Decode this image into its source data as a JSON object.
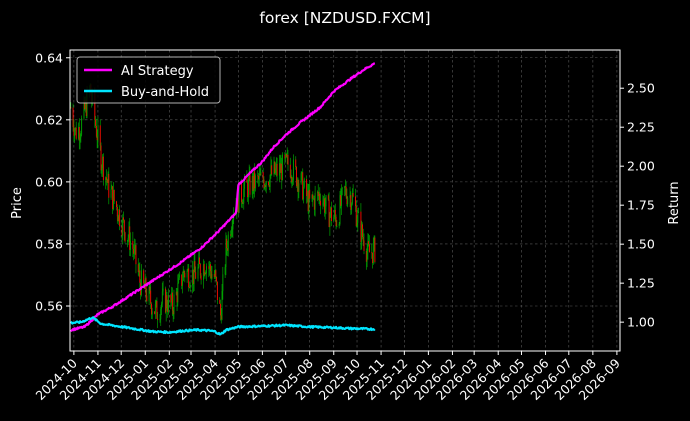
{
  "chart_data": {
    "type": "line",
    "title": "forex [NZDUSD.FXCM]",
    "ylabel_left": "Price",
    "ylabel_right": "Return",
    "grid": true,
    "legend_placement": "top-left",
    "x_ticks": [
      "2024-10",
      "2024-11",
      "2024-12",
      "2025-01",
      "2025-02",
      "2025-03",
      "2025-04",
      "2025-05",
      "2025-06",
      "2025-07",
      "2025-08",
      "2025-09",
      "2025-10",
      "2025-11",
      "2025-12",
      "2026-01",
      "2026-02",
      "2026-03",
      "2026-04",
      "2026-05",
      "2026-06",
      "2026-07",
      "2026-08",
      "2026-09"
    ],
    "x_range": [
      "2024-09-26",
      "2026-09-05"
    ],
    "y_left_ticks": [
      "0.56",
      "0.58",
      "0.60",
      "0.62",
      "0.64"
    ],
    "y_left_range": [
      0.5455,
      0.6425
    ],
    "y_right_ticks": [
      "1.00",
      "1.25",
      "1.50",
      "1.75",
      "2.00",
      "2.25",
      "2.50"
    ],
    "y_right_range": [
      0.815,
      2.745
    ],
    "candles": {
      "up_color": "#00a000",
      "down_color": "#ff0000",
      "wick_color": "#00a000",
      "date_range": [
        "2024-09-27",
        "2025-10-24"
      ],
      "close_anchors": [
        [
          "2024-09-27",
          0.624
        ],
        [
          "2024-10-03",
          0.616
        ],
        [
          "2024-10-10",
          0.618
        ],
        [
          "2024-10-16",
          0.624
        ],
        [
          "2024-10-22",
          0.63
        ],
        [
          "2024-10-28",
          0.62
        ],
        [
          "2024-11-05",
          0.608
        ],
        [
          "2024-11-15",
          0.598
        ],
        [
          "2024-11-25",
          0.592
        ],
        [
          "2024-12-05",
          0.585
        ],
        [
          "2024-12-15",
          0.58
        ],
        [
          "2024-12-25",
          0.568
        ],
        [
          "2025-01-05",
          0.563
        ],
        [
          "2025-01-15",
          0.558
        ],
        [
          "2025-01-25",
          0.562
        ],
        [
          "2025-02-05",
          0.56
        ],
        [
          "2025-02-20",
          0.571
        ],
        [
          "2025-03-05",
          0.57
        ],
        [
          "2025-03-20",
          0.574
        ],
        [
          "2025-04-01",
          0.569
        ],
        [
          "2025-04-08",
          0.557
        ],
        [
          "2025-04-15",
          0.578
        ],
        [
          "2025-04-25",
          0.592
        ],
        [
          "2025-05-10",
          0.598
        ],
        [
          "2025-05-25",
          0.6
        ],
        [
          "2025-06-10",
          0.602
        ],
        [
          "2025-06-25",
          0.604
        ],
        [
          "2025-07-05",
          0.606
        ],
        [
          "2025-07-20",
          0.6
        ],
        [
          "2025-08-01",
          0.593
        ],
        [
          "2025-08-15",
          0.596
        ],
        [
          "2025-08-25",
          0.59
        ],
        [
          "2025-09-05",
          0.588
        ],
        [
          "2025-09-15",
          0.597
        ],
        [
          "2025-09-25",
          0.595
        ],
        [
          "2025-10-05",
          0.585
        ],
        [
          "2025-10-15",
          0.577
        ],
        [
          "2025-10-24",
          0.578
        ]
      ]
    },
    "series": [
      {
        "name": "AI Strategy",
        "color": "#ff00ff",
        "axis": "right",
        "points": [
          [
            "2024-09-27",
            0.95
          ],
          [
            "2024-10-15",
            0.97
          ],
          [
            "2024-11-01",
            1.05
          ],
          [
            "2024-11-20",
            1.1
          ],
          [
            "2024-12-15",
            1.18
          ],
          [
            "2025-01-15",
            1.28
          ],
          [
            "2025-02-15",
            1.38
          ],
          [
            "2025-03-15",
            1.48
          ],
          [
            "2025-04-05",
            1.58
          ],
          [
            "2025-04-28",
            1.7
          ],
          [
            "2025-05-01",
            1.88
          ],
          [
            "2025-05-15",
            1.95
          ],
          [
            "2025-06-01",
            2.03
          ],
          [
            "2025-06-15",
            2.12
          ],
          [
            "2025-07-01",
            2.2
          ],
          [
            "2025-07-20",
            2.28
          ],
          [
            "2025-08-15",
            2.38
          ],
          [
            "2025-09-01",
            2.48
          ],
          [
            "2025-09-20",
            2.55
          ],
          [
            "2025-10-10",
            2.62
          ],
          [
            "2025-10-24",
            2.66
          ]
        ]
      },
      {
        "name": "Buy-and-Hold",
        "color": "#00e5ff",
        "axis": "right",
        "points": [
          [
            "2024-09-27",
            0.995
          ],
          [
            "2024-10-10",
            1.0
          ],
          [
            "2024-10-25",
            1.03
          ],
          [
            "2024-11-05",
            0.99
          ],
          [
            "2024-11-25",
            0.975
          ],
          [
            "2024-12-15",
            0.96
          ],
          [
            "2025-01-10",
            0.94
          ],
          [
            "2025-02-01",
            0.935
          ],
          [
            "2025-02-20",
            0.945
          ],
          [
            "2025-03-10",
            0.95
          ],
          [
            "2025-03-25",
            0.945
          ],
          [
            "2025-04-01",
            0.94
          ],
          [
            "2025-04-08",
            0.92
          ],
          [
            "2025-04-15",
            0.95
          ],
          [
            "2025-05-01",
            0.97
          ],
          [
            "2025-06-01",
            0.975
          ],
          [
            "2025-07-01",
            0.98
          ],
          [
            "2025-08-01",
            0.97
          ],
          [
            "2025-09-01",
            0.965
          ],
          [
            "2025-09-20",
            0.96
          ],
          [
            "2025-10-24",
            0.955
          ]
        ]
      }
    ]
  }
}
